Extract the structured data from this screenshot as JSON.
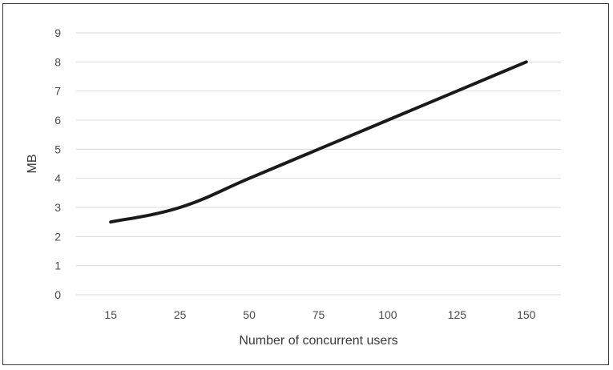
{
  "chart_data": {
    "type": "line",
    "title": "",
    "xlabel": "Number of concurrent users",
    "ylabel": "MB",
    "categories": [
      "15",
      "25",
      "50",
      "75",
      "100",
      "125",
      "150"
    ],
    "series": [
      {
        "values": [
          2.5,
          3.0,
          4.0,
          5.0,
          6.0,
          7.0,
          8.0
        ]
      }
    ],
    "ylim": [
      0,
      9
    ],
    "yticks": [
      0,
      1,
      2,
      3,
      4,
      5,
      6,
      7,
      8,
      9
    ],
    "grid": true,
    "legend": "none",
    "line_color": "#1a1a1a",
    "grid_color": "#d9d9d9"
  }
}
